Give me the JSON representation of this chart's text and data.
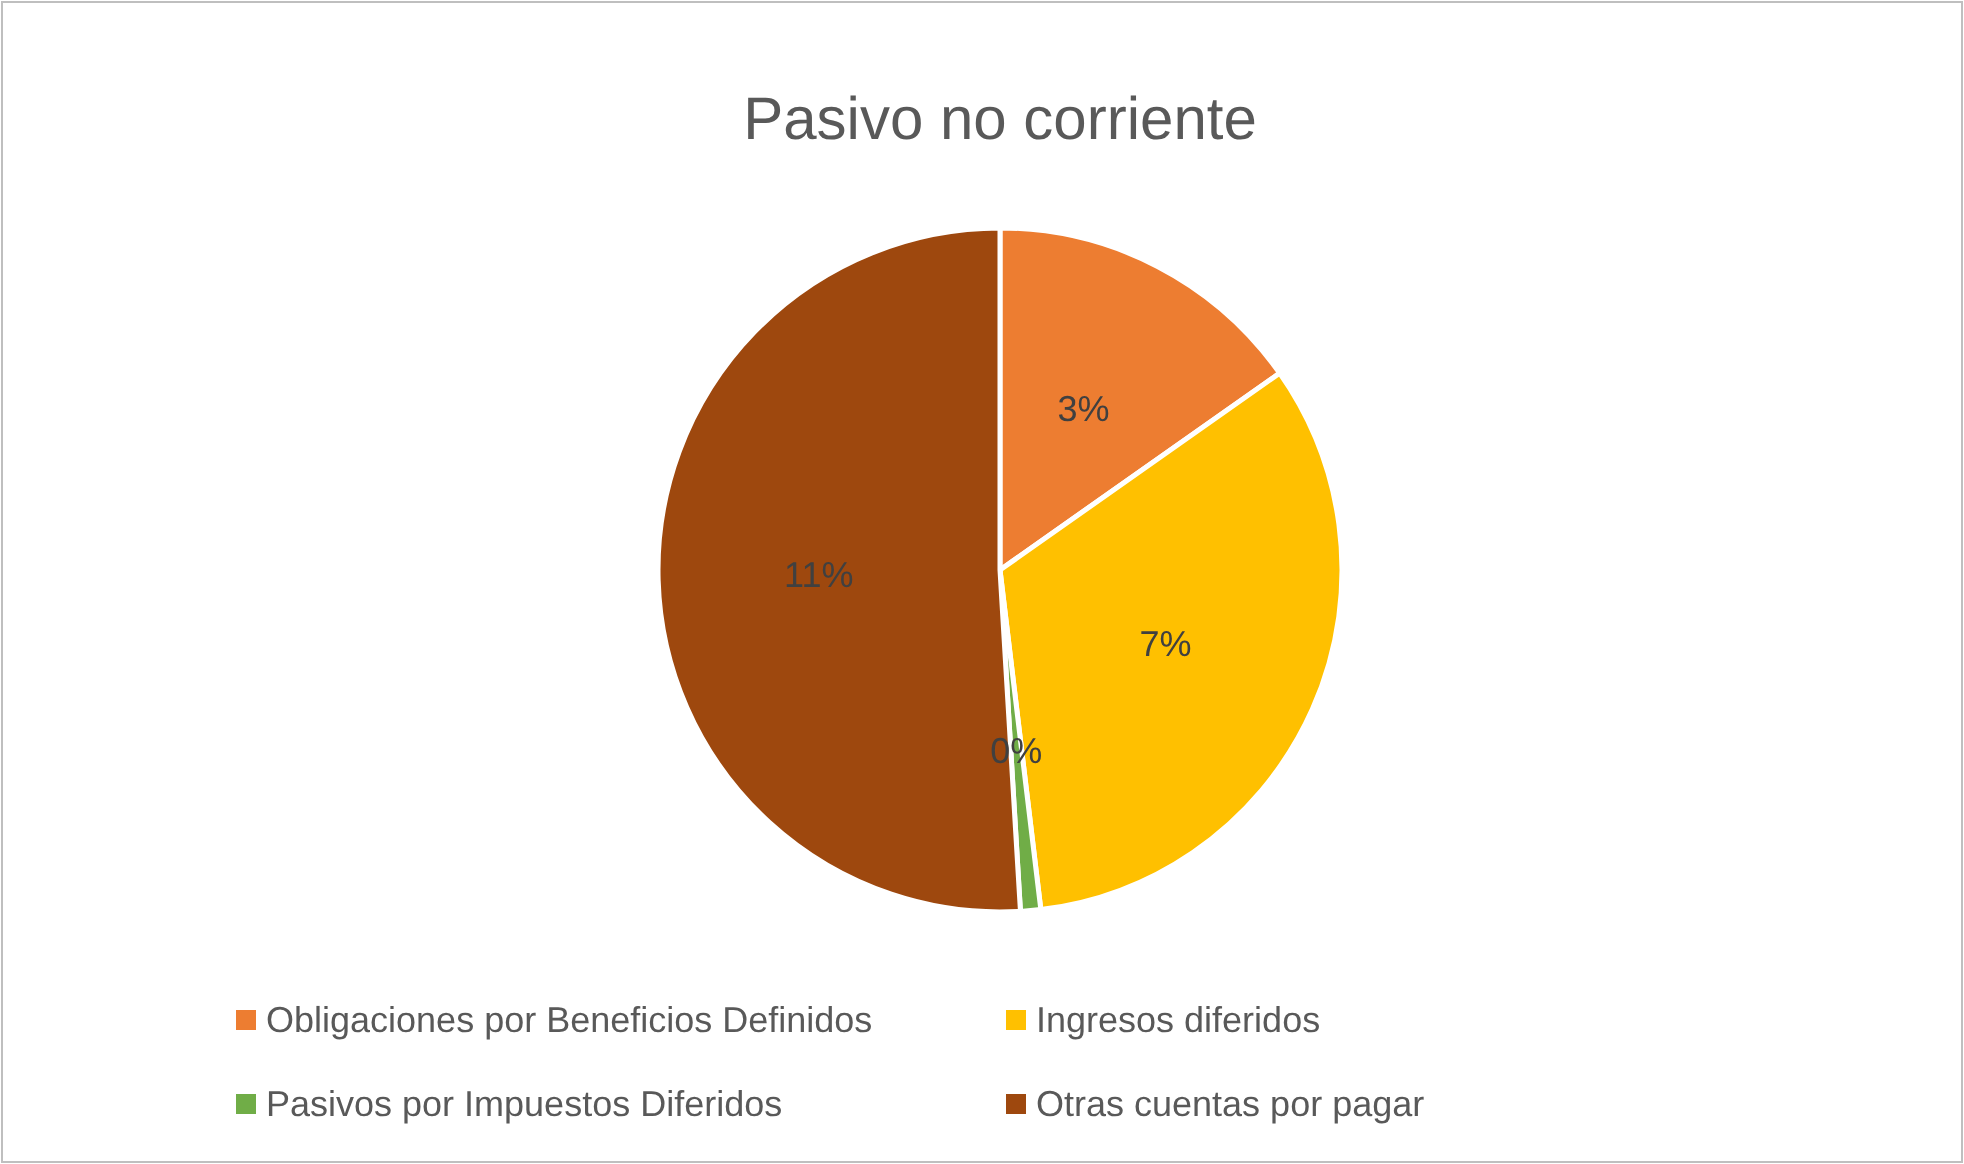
{
  "chart_data": {
    "type": "pie",
    "title": "Pasivo no corriente",
    "categories": [
      "Obligaciones por Beneficios Definidos",
      "Ingresos diferidos",
      "Pasivos por Impuestos Diferidos",
      "Otras cuentas por pagar"
    ],
    "values": [
      3.2,
      6.9,
      0.2,
      10.7
    ],
    "value_labels": [
      "3%",
      "7%",
      "0%",
      "11%"
    ],
    "colors": [
      "#ed7d31",
      "#ffc000",
      "#70ad47",
      "#9e480e"
    ],
    "legend": "bottom"
  }
}
